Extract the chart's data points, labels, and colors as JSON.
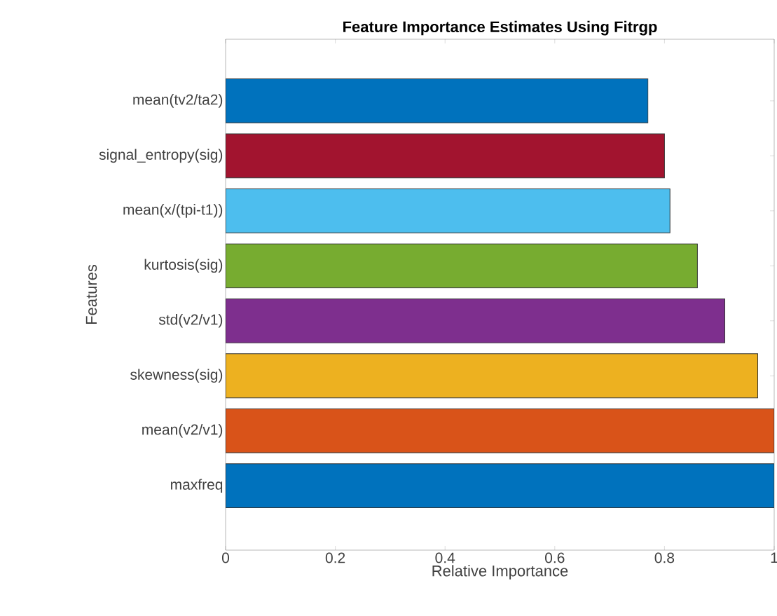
{
  "chart_data": {
    "type": "bar",
    "orientation": "horizontal",
    "title": "Feature Importance Estimates Using  Fitrgp",
    "xlabel": "Relative Importance",
    "ylabel": "Features",
    "categories": [
      "mean(tv2/ta2)",
      "signal_entropy(sig)",
      "mean(x/(tpi-t1))",
      "kurtosis(sig)",
      "std(v2/v1)",
      "skewness(sig)",
      "mean(v2/v1)",
      "maxfreq"
    ],
    "values": [
      0.77,
      0.8,
      0.81,
      0.86,
      0.91,
      0.97,
      1.0,
      1.0
    ],
    "colors": [
      "#0072bd",
      "#a2142f",
      "#4dbeee",
      "#77ac30",
      "#7e2f8e",
      "#edb120",
      "#d95319",
      "#0072bd"
    ],
    "xlim": [
      0,
      1
    ],
    "xticks": [
      0,
      0.2,
      0.4,
      0.6,
      0.8,
      1
    ],
    "grid": false
  }
}
